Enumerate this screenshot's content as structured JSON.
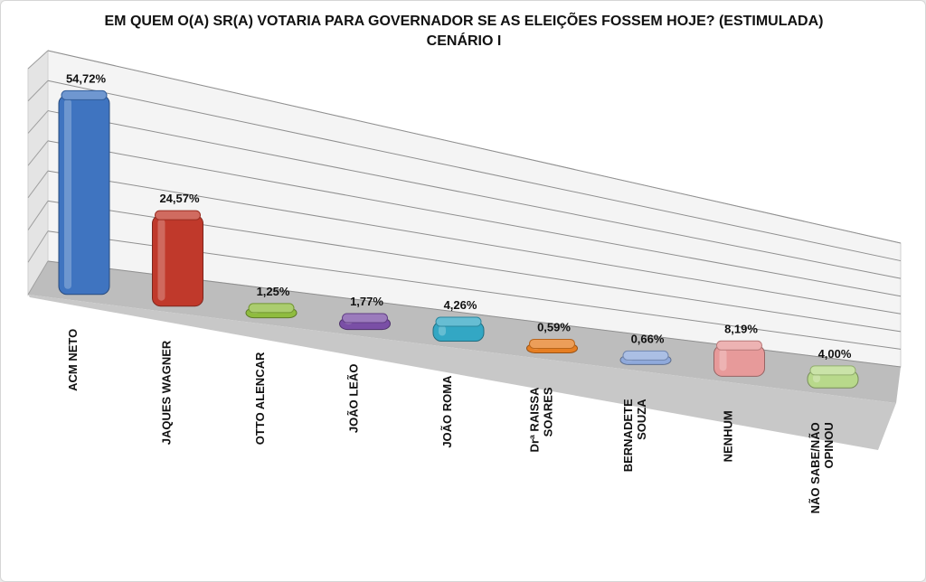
{
  "chart_data": {
    "type": "bar",
    "title": "EM QUEM O(A) SR(A) VOTARIA PARA GOVERNADOR SE AS ELEIÇÕES FOSSEM HOJE? (ESTIMULADA)",
    "subtitle": "CENÁRIO I",
    "categories": [
      "ACM NETO",
      "JAQUES WAGNER",
      "OTTO ALENCAR",
      "JOÃO LEÃO",
      "JOÃO ROMA",
      "Drª RAISSA SOARES",
      "BERNADETE SOUZA",
      "NENHUM",
      "NÃO SABE/NÃO OPINOU"
    ],
    "category_lines": [
      [
        "ACM NETO"
      ],
      [
        "JAQUES WAGNER"
      ],
      [
        "OTTO ALENCAR"
      ],
      [
        "JOÃO LEÃO"
      ],
      [
        "JOÃO ROMA"
      ],
      [
        "Drª RAISSA",
        "SOARES"
      ],
      [
        "BERNADETE",
        "SOUZA"
      ],
      [
        "NENHUM"
      ],
      [
        "NÃO SABE/NÃO",
        "OPINOU"
      ]
    ],
    "values": [
      54.72,
      24.57,
      1.25,
      1.77,
      4.26,
      0.59,
      0.66,
      8.19,
      4.0
    ],
    "value_labels": [
      "54,72%",
      "24,57%",
      "1,25%",
      "1,77%",
      "4,26%",
      "0,59%",
      "0,66%",
      "8,19%",
      "4,00%"
    ],
    "colors": [
      "#3f74c0",
      "#c0392b",
      "#8fbc3f",
      "#7a4fa6",
      "#33a7c4",
      "#e67e22",
      "#8fa9db",
      "#e79a9a",
      "#b8d98b"
    ],
    "ylim": [
      0,
      60
    ],
    "grid": true,
    "legend": "none",
    "style": "3d-perspective"
  }
}
